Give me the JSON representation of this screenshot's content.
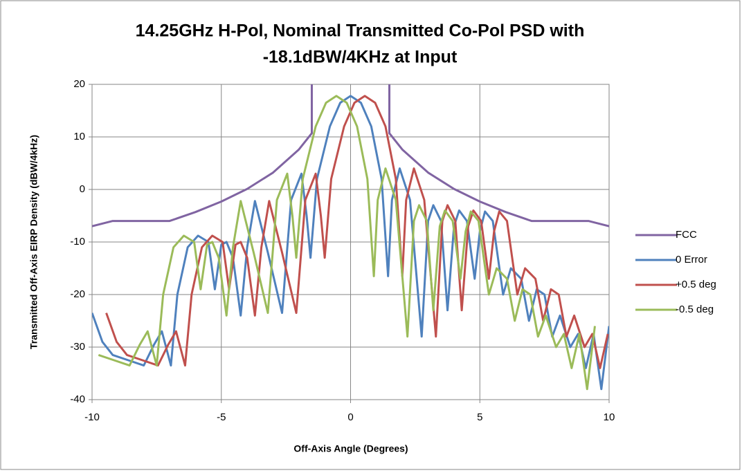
{
  "chart_data": {
    "type": "line",
    "title": [
      "14.25GHz H-Pol, Nominal Transmitted  Co-Pol PSD with",
      "-18.1dBW/4KHz at Input"
    ],
    "x_label": "Off-Axis Angle (Degrees)",
    "y_label": "Transmitted Off-Axis EIRP Density (dBW/4kHz)",
    "xlim": [
      -10,
      10
    ],
    "xticks": [
      -10,
      -5,
      0,
      5,
      10
    ],
    "ylim": [
      -40,
      20
    ],
    "yticks": [
      -40,
      -30,
      -20,
      -10,
      0,
      10,
      20
    ],
    "grid": true,
    "legend": "right",
    "series": [
      {
        "name": "FCC",
        "color": "#8064a2",
        "x": [
          -10,
          -9.2,
          -7,
          -6,
          -5,
          -4,
          -3,
          -2,
          -1.5,
          -1.5,
          0,
          1.5,
          1.5,
          2,
          3,
          4,
          5,
          6,
          7,
          9.2,
          10
        ],
        "values": [
          -7,
          -6,
          -6,
          -4.3,
          -2.3,
          0.1,
          3.2,
          7.6,
          10.7,
          20,
          null,
          20,
          10.7,
          7.6,
          3.2,
          0.1,
          -2.3,
          -4.3,
          -6,
          -6,
          -7
        ]
      },
      {
        "name": "0 Error",
        "color": "#4f81bd",
        "x": [
          -10,
          -9.6,
          -9.2,
          -8.6,
          -8.0,
          -7.6,
          -7.3,
          -6.95,
          -6.7,
          -6.3,
          -5.9,
          -5.5,
          -5.25,
          -5.0,
          -4.8,
          -4.55,
          -4.25,
          -4.0,
          -3.7,
          -3.2,
          -2.65,
          -2.3,
          -1.9,
          -1.7,
          -1.55,
          -1.3,
          -0.8,
          -0.4,
          0,
          0.4,
          0.8,
          1.2,
          1.45,
          1.6,
          1.9,
          2.3,
          2.75,
          3.0,
          3.2,
          3.5,
          3.75,
          4.0,
          4.2,
          4.5,
          4.8,
          5.0,
          5.2,
          5.5,
          5.9,
          6.2,
          6.6,
          6.9,
          7.2,
          7.5,
          7.8,
          8.1,
          8.5,
          8.8,
          9.1,
          9.4,
          9.7,
          10
        ],
        "values": [
          -23.5,
          -29,
          -31.5,
          -32.5,
          -33.5,
          -29.5,
          -27,
          -33.5,
          -20,
          -11,
          -8.8,
          -10,
          -19,
          -10.5,
          -10,
          -13,
          -24,
          -11,
          -2.2,
          -12,
          -23.5,
          -2,
          3,
          -5,
          -13,
          2,
          12,
          16.5,
          17.8,
          16.5,
          12,
          2,
          -16.5,
          -2,
          4,
          -2,
          -28,
          -6,
          -3,
          -6,
          -23,
          -7,
          -4,
          -6,
          -17,
          -8,
          -4.2,
          -6,
          -20,
          -15,
          -17,
          -25,
          -19,
          -20,
          -28,
          -24,
          -30,
          -27.5,
          -34,
          -27.5,
          -38,
          -26
        ]
      },
      {
        "name": "+0.5 deg",
        "color": "#c0504d",
        "x": [
          -9.45,
          -9.05,
          -8.65,
          -8.05,
          -7.45,
          -7.05,
          -6.75,
          -6.4,
          -6.15,
          -5.75,
          -5.35,
          -4.95,
          -4.7,
          -4.45,
          -4.25,
          -4.0,
          -3.7,
          -3.45,
          -3.15,
          -2.65,
          -2.1,
          -1.75,
          -1.35,
          -1.15,
          -1.0,
          -0.75,
          -0.25,
          0.15,
          0.55,
          0.95,
          1.35,
          1.75,
          2.0,
          2.15,
          2.45,
          2.85,
          3.3,
          3.55,
          3.75,
          4.05,
          4.3,
          4.55,
          4.75,
          5.05,
          5.35,
          5.55,
          5.75,
          6.05,
          6.45,
          6.75,
          7.15,
          7.45,
          7.75,
          8.05,
          8.35,
          8.65,
          9.05,
          9.35,
          9.65,
          9.95
        ],
        "values": [
          -23.5,
          -29,
          -31.5,
          -32.5,
          -33.5,
          -29.5,
          -27,
          -33.5,
          -20,
          -11,
          -8.8,
          -10,
          -19,
          -10.5,
          -10,
          -13,
          -24,
          -11,
          -2.2,
          -12,
          -23.5,
          -2,
          3,
          -5,
          -13,
          2,
          12,
          16.5,
          17.8,
          16.5,
          12,
          2,
          -16.5,
          -2,
          4,
          -2,
          -28,
          -6,
          -3,
          -6,
          -23,
          -7,
          -4,
          -6,
          -17,
          -8,
          -4.2,
          -6,
          -20,
          -15,
          -17,
          -25,
          -19,
          -20,
          -28,
          -24,
          -30,
          -27.5,
          -34,
          -27.5
        ]
      },
      {
        "name": "-0.5 deg",
        "color": "#9bbb59",
        "x": [
          -9.75,
          -9.15,
          -8.55,
          -8.15,
          -7.85,
          -7.5,
          -7.25,
          -6.85,
          -6.45,
          -6.05,
          -5.8,
          -5.55,
          -5.35,
          -5.1,
          -4.8,
          -4.55,
          -4.25,
          -3.75,
          -3.2,
          -2.85,
          -2.45,
          -2.25,
          -2.1,
          -1.85,
          -1.35,
          -0.95,
          -0.55,
          -0.15,
          0.25,
          0.65,
          0.9,
          1.05,
          1.35,
          1.75,
          2.2,
          2.45,
          2.65,
          2.95,
          3.2,
          3.45,
          3.65,
          3.95,
          4.25,
          4.45,
          4.65,
          4.95,
          5.35,
          5.65,
          6.05,
          6.35,
          6.65,
          6.95,
          7.25,
          7.55,
          7.95,
          8.25,
          8.55,
          8.85,
          9.15,
          9.45
        ],
        "values": [
          -31.5,
          -32.5,
          -33.5,
          -29.5,
          -27,
          -33.5,
          -20,
          -11,
          -8.8,
          -10,
          -19,
          -10.5,
          -10,
          -13,
          -24,
          -11,
          -2.2,
          -12,
          -23.5,
          -2,
          3,
          -5,
          -13,
          2,
          12,
          16.5,
          17.8,
          16.5,
          12,
          2,
          -16.5,
          -2,
          4,
          -2,
          -28,
          -6,
          -3,
          -6,
          -23,
          -7,
          -4,
          -6,
          -17,
          -8,
          -4.2,
          -6,
          -20,
          -15,
          -17,
          -25,
          -19,
          -20,
          -28,
          -24,
          -30,
          -27.5,
          -34,
          -27.5,
          -38,
          -26
        ]
      }
    ]
  }
}
